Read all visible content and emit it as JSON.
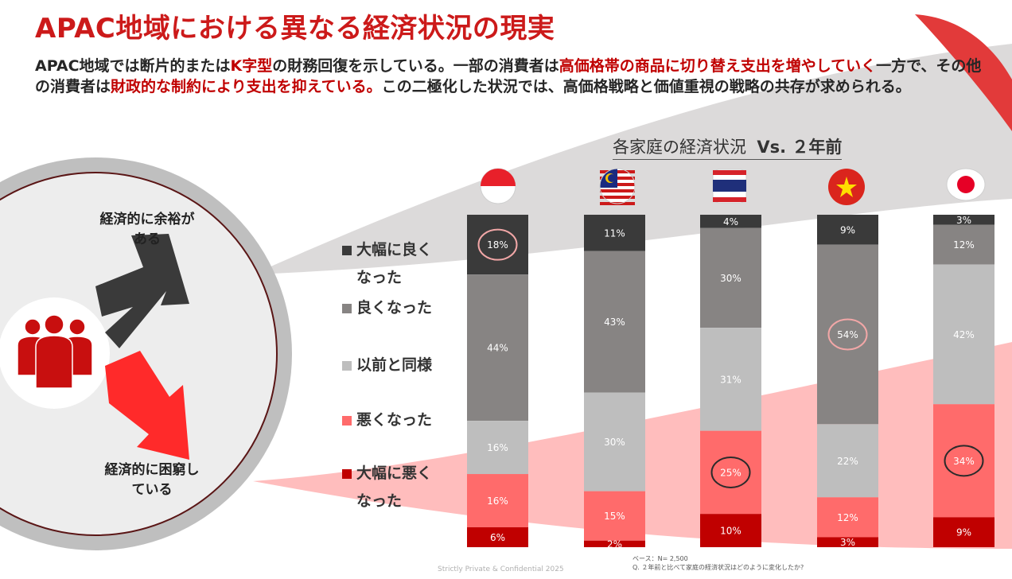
{
  "title": "APAC地域における異なる経済状況の現実",
  "subtitle": {
    "parts": [
      {
        "text": "APAC地域では断片的または",
        "highlight": false
      },
      {
        "text": "K字型",
        "highlight": true
      },
      {
        "text": "の財務回復を示している。一部の消費者は",
        "highlight": false
      },
      {
        "text": "高価格帯の商品に切り替え支出を増やしていく",
        "highlight": true
      },
      {
        "text": "一方で、その他の消費者は",
        "highlight": false
      },
      {
        "text": "財政的な制約により支出を抑えている。",
        "highlight": true
      },
      {
        "text": "この二極化した状況では、高価格戦略と価値重視の戦略の共存が求められる。",
        "highlight": false
      }
    ]
  },
  "illustration": {
    "up_label_1": "経済的に余裕が",
    "up_label_2": "ある",
    "down_label_1": "経済的に困窮し",
    "down_label_2": "ている"
  },
  "footnote": {
    "base": "ベース：N= 2,500",
    "question": "Q. ２年前と比べて家庭の経済状況はどのように変化したか?"
  },
  "confidential": "Strictly Private & Confidential 2025",
  "colors": {
    "accent": "#cc1a1a",
    "much_better": "#3a3a3a",
    "better": "#878483",
    "same": "#bebebe",
    "worse": "#ff6b6b",
    "much_worse": "#c00000",
    "circle_on_dark": "#f2a7a7",
    "circle_on_light": "#2b2b2b"
  },
  "chart_data": {
    "type": "bar",
    "stacked": true,
    "normalized": true,
    "title": "各家庭の経済状況",
    "title_vs": "Vs. ２年前",
    "categories": [
      "Indonesia",
      "Malaysia",
      "Thailand",
      "Vietnam",
      "Japan"
    ],
    "legend": [
      {
        "label_1": "大幅に良く",
        "label_2": "なった",
        "color": "#3a3a3a"
      },
      {
        "label_1": "良くなった",
        "label_2": "",
        "color": "#878483"
      },
      {
        "label_1": "以前と同様",
        "label_2": "",
        "color": "#bebebe"
      },
      {
        "label_1": "悪くなった",
        "label_2": "",
        "color": "#ff6b6b"
      },
      {
        "label_1": "大幅に悪く",
        "label_2": "なった",
        "color": "#c00000"
      }
    ],
    "series": [
      {
        "values": [
          18,
          11,
          4,
          9,
          3
        ],
        "color": "#3a3a3a"
      },
      {
        "values": [
          44,
          43,
          30,
          54,
          12
        ],
        "color": "#878483"
      },
      {
        "values": [
          16,
          30,
          31,
          22,
          42
        ],
        "color": "#bebebe"
      },
      {
        "values": [
          16,
          15,
          25,
          12,
          34
        ],
        "color": "#ff6b6b"
      },
      {
        "values": [
          6,
          2,
          10,
          3,
          9
        ],
        "color": "#c00000"
      }
    ],
    "highlighted": [
      {
        "category": 0,
        "series": 0
      },
      {
        "category": 2,
        "series": 3
      },
      {
        "category": 3,
        "series": 1
      },
      {
        "category": 4,
        "series": 3
      }
    ],
    "ylim": [
      0,
      100
    ],
    "value_suffix": "%"
  }
}
